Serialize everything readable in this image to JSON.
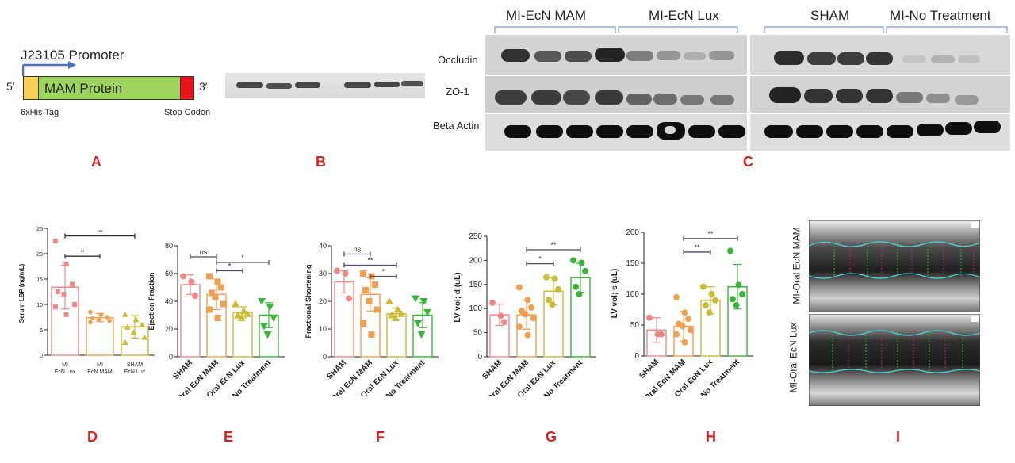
{
  "panel_letters": {
    "a": "A",
    "b": "B",
    "c": "C",
    "d": "D",
    "e": "E",
    "f": "F",
    "g": "G",
    "h": "H",
    "i": "I"
  },
  "panel_a": {
    "promoter": "J23105 Promoter",
    "five_prime": "5′",
    "three_prime": "3′",
    "protein": "MAM Protein",
    "his_tag": "6xHis Tag",
    "stop": "Stop Codon",
    "colors": {
      "his": "#f9d15a",
      "protein": "#9dd55f",
      "stop": "#e8141a",
      "arrow": "#4a72c4"
    }
  },
  "panel_c": {
    "groups": [
      "MI-EcN MAM",
      "MI-EcN Lux",
      "SHAM",
      "MI-No Treatment"
    ],
    "rows": [
      "Occludin",
      "ZO-1",
      "Beta Actin"
    ]
  },
  "chart_data": [
    {
      "panel": "D",
      "type": "bar",
      "ylabel": "Serum LBP (ng/mL)",
      "ylim": [
        0,
        25
      ],
      "yticks": [
        0,
        5,
        10,
        15,
        20,
        25
      ],
      "categories": [
        [
          "MI",
          "EcN Lux"
        ],
        [
          "MI",
          "EcN MAM"
        ],
        [
          "SHAM",
          "EcN Lux"
        ]
      ],
      "values": [
        13.4,
        7.4,
        5.6
      ],
      "errors": [
        4.3,
        0.8,
        2.2
      ],
      "colors": [
        "#ee8888",
        "#f0a050",
        "#c8bc38"
      ],
      "markers": [
        "square",
        "hexagon",
        "triangle"
      ],
      "points": [
        [
          22.5,
          18,
          14,
          12.5,
          12,
          10,
          9.5,
          8
        ],
        [
          8.5,
          8,
          7.5,
          7.3,
          7,
          6.8,
          6.5
        ],
        [
          8,
          7,
          6,
          5.5,
          4.5,
          3.5,
          2.5
        ]
      ],
      "sig": [
        {
          "from": 0,
          "to": 1,
          "label": "**",
          "y": 19.5
        },
        {
          "from": 0,
          "to": 2,
          "label": "***",
          "y": 23.5
        }
      ]
    },
    {
      "panel": "E",
      "type": "bar",
      "ylabel": "Ejection Fraction",
      "ylim": [
        0,
        80
      ],
      "yticks": [
        0,
        20,
        40,
        60,
        80
      ],
      "categories": [
        "SHAM",
        "MI-Oral EcN MAM",
        "MI-Oral EcN Lux",
        "MI-No Treatment"
      ],
      "values": [
        52,
        45,
        32,
        30
      ],
      "errors": [
        7,
        11,
        4,
        9
      ],
      "colors": [
        "#ee8888",
        "#f0a050",
        "#c8bc38",
        "#3ab53a"
      ],
      "markers": [
        "circle",
        "square",
        "triangle",
        "triangle-down"
      ],
      "points": [
        [
          58,
          54,
          44
        ],
        [
          58,
          54,
          50,
          46,
          43,
          38,
          34,
          28
        ],
        [
          38,
          33,
          31,
          30,
          28
        ],
        [
          40,
          36,
          28,
          22,
          16
        ]
      ],
      "sig": [
        {
          "from": 0,
          "to": 1,
          "label": "ns",
          "y": 72
        },
        {
          "from": 1,
          "to": 3,
          "label": "*",
          "y": 68
        },
        {
          "from": 1,
          "to": 2,
          "label": "*",
          "y": 62
        }
      ]
    },
    {
      "panel": "F",
      "type": "bar",
      "ylabel": "Fractional  Shortening",
      "ylim": [
        0,
        40
      ],
      "yticks": [
        0,
        10,
        20,
        30,
        40
      ],
      "categories": [
        "SHAM",
        "MI-Oral EcN MAM",
        "MI-Oral EcN Lux",
        "MI-No Treatment"
      ],
      "values": [
        27,
        22.5,
        15.5,
        15
      ],
      "errors": [
        4,
        6,
        2,
        4.5
      ],
      "colors": [
        "#ee8888",
        "#f0a050",
        "#c8bc38",
        "#3ab53a"
      ],
      "markers": [
        "circle",
        "square",
        "triangle",
        "triangle-down"
      ],
      "points": [
        [
          31,
          30,
          21
        ],
        [
          30,
          29,
          26,
          24,
          20,
          17,
          12,
          8
        ],
        [
          20,
          17,
          15.5,
          15,
          14
        ],
        [
          21,
          20,
          16,
          12,
          8
        ]
      ],
      "sig": [
        {
          "from": 0,
          "to": 1,
          "label": "ns",
          "y": 37
        },
        {
          "from": 0,
          "to": 2,
          "label": "**",
          "y": 33
        },
        {
          "from": 1,
          "to": 2,
          "label": "*",
          "y": 29
        }
      ]
    },
    {
      "panel": "G",
      "type": "bar",
      "ylabel": "LV vol; d (uL)",
      "ylim": [
        0,
        250
      ],
      "yticks": [
        0,
        50,
        100,
        150,
        200,
        250
      ],
      "categories": [
        "SHAM",
        "MI-Oral EcN MAM",
        "MI-Oral EcN Lux",
        "MI-No Treatment"
      ],
      "values": [
        87,
        87,
        136,
        164
      ],
      "errors": [
        22,
        30,
        28,
        30
      ],
      "colors": [
        "#ee8888",
        "#f0a050",
        "#c8bc38",
        "#3ab53a"
      ],
      "markers": [
        "circle",
        "circle",
        "circle",
        "circle"
      ],
      "points": [
        [
          112,
          85,
          72
        ],
        [
          144,
          118,
          102,
          95,
          88,
          80,
          62,
          45
        ],
        [
          165,
          162,
          140,
          118,
          108
        ],
        [
          200,
          195,
          178,
          145,
          130
        ]
      ],
      "sig": [
        {
          "from": 1,
          "to": 3,
          "label": "**",
          "y": 222
        },
        {
          "from": 1,
          "to": 2,
          "label": "*",
          "y": 193
        }
      ]
    },
    {
      "panel": "H",
      "type": "bar",
      "ylabel": "LV vol; s (uL)",
      "ylim": [
        0,
        200
      ],
      "yticks": [
        0,
        50,
        100,
        150,
        200
      ],
      "categories": [
        "SHAM",
        "MI-Oral EcN MAM",
        "MI-Oral EcN Lux",
        "MI-No Treatment"
      ],
      "values": [
        42,
        48,
        90,
        112
      ],
      "errors": [
        20,
        24,
        22,
        36
      ],
      "colors": [
        "#ee8888",
        "#f0a050",
        "#c8bc38",
        "#3ab53a"
      ],
      "markers": [
        "circle",
        "circle",
        "circle",
        "circle"
      ],
      "points": [
        [
          62,
          35,
          35
        ],
        [
          95,
          70,
          60,
          52,
          48,
          42,
          35,
          22
        ],
        [
          112,
          100,
          90,
          82,
          70
        ],
        [
          170,
          115,
          100,
          92,
          82
        ]
      ],
      "sig": [
        {
          "from": 1,
          "to": 3,
          "label": "**",
          "y": 190
        },
        {
          "from": 1,
          "to": 2,
          "label": "**",
          "y": 168
        }
      ]
    }
  ],
  "panel_i": {
    "labels": [
      "MI-Oral EcN MAM",
      "MI-Oral EcN Lux"
    ]
  }
}
